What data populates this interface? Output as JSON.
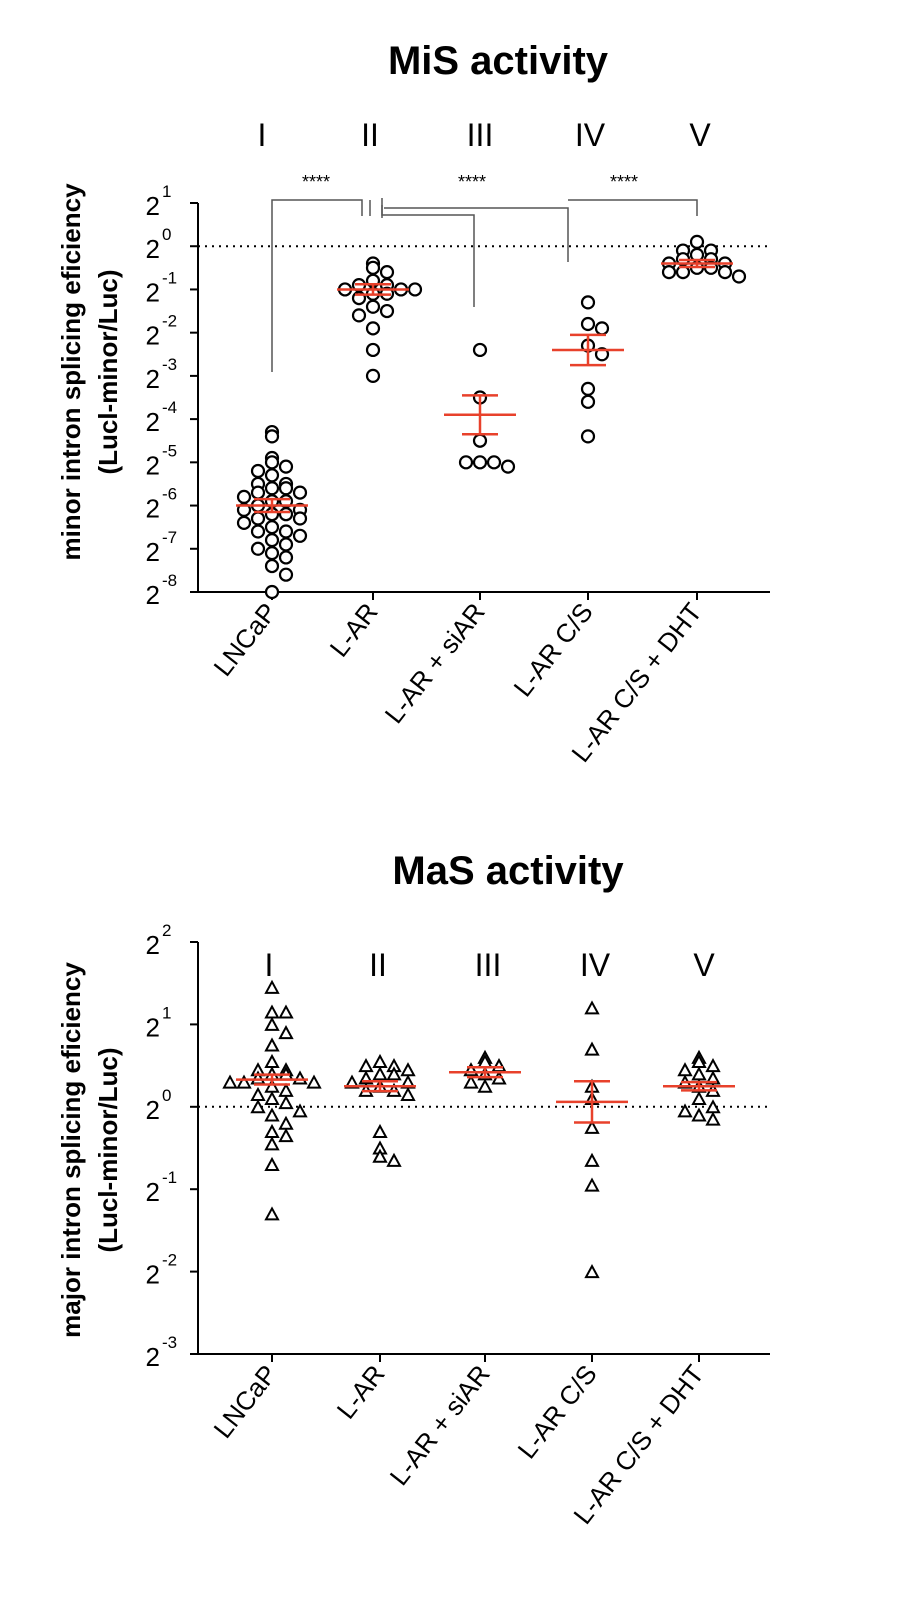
{
  "chart_data": [
    {
      "type": "scatter",
      "title": "MiS activity",
      "ylabel_line1": "minor intron splicing eficiency",
      "ylabel_line2": "(Lucl-minor/Luc)",
      "yscale": "log2",
      "ylim_exp": [
        -8,
        1
      ],
      "ytick_base": "2",
      "ytick_exponents": [
        "1",
        "0",
        "-1",
        "-2",
        "-3",
        "-4",
        "-5",
        "-6",
        "-7",
        "-8"
      ],
      "categories": [
        "LNCaP",
        "L-AR",
        "L-AR + siAR",
        "L-AR C/S",
        "L-AR C/S + DHT"
      ],
      "group_labels": [
        "I",
        "II",
        "III",
        "IV",
        "V"
      ],
      "marker": "circle",
      "reference_line_exp": 0,
      "significance": [
        {
          "from": 0,
          "to": 1,
          "label": "****"
        },
        {
          "from": 1,
          "to": 2,
          "label": ""
        },
        {
          "from": 1,
          "to": 3,
          "label": "****"
        },
        {
          "from": 3,
          "to": 4,
          "label": "****"
        }
      ],
      "series": [
        {
          "name": "LNCaP",
          "mean_exp": -6.0,
          "sem_exp": 0.15,
          "points_exp": [
            -4.3,
            -4.4,
            -4.9,
            -5.0,
            -5.1,
            -5.2,
            -5.3,
            -5.5,
            -5.5,
            -5.6,
            -5.6,
            -5.7,
            -5.7,
            -5.8,
            -5.9,
            -5.9,
            -6.0,
            -6.1,
            -6.1,
            -6.2,
            -6.2,
            -6.3,
            -6.3,
            -6.4,
            -6.5,
            -6.6,
            -6.6,
            -6.7,
            -6.8,
            -6.9,
            -7.0,
            -7.1,
            -7.2,
            -7.4,
            -7.6,
            -8.0
          ]
        },
        {
          "name": "L-AR",
          "mean_exp": -1.0,
          "sem_exp": 0.12,
          "points_exp": [
            -0.4,
            -0.5,
            -0.6,
            -0.8,
            -0.9,
            -0.9,
            -1.0,
            -1.0,
            -1.0,
            -1.1,
            -1.1,
            -1.2,
            -1.4,
            -1.5,
            -1.6,
            -1.9,
            -2.4,
            -3.0
          ]
        },
        {
          "name": "L-AR + siAR",
          "mean_exp": -3.9,
          "sem_exp": 0.45,
          "points_exp": [
            -2.4,
            -3.5,
            -4.5,
            -5.0,
            -5.0,
            -5.0,
            -5.1
          ]
        },
        {
          "name": "L-AR C/S",
          "mean_exp": -2.4,
          "sem_exp": 0.35,
          "points_exp": [
            -1.3,
            -1.8,
            -1.9,
            -2.3,
            -2.5,
            -3.3,
            -3.6,
            -4.4
          ]
        },
        {
          "name": "L-AR C/S + DHT",
          "mean_exp": -0.4,
          "sem_exp": 0.08,
          "points_exp": [
            0.1,
            -0.1,
            -0.1,
            -0.2,
            -0.3,
            -0.3,
            -0.4,
            -0.4,
            -0.5,
            -0.5,
            -0.6,
            -0.6,
            -0.6,
            -0.7
          ]
        }
      ]
    },
    {
      "type": "scatter",
      "title": "MaS activity",
      "ylabel_line1": "major intron splicing eficiency",
      "ylabel_line2": "(Lucl-minor/Luc)",
      "yscale": "log2",
      "ylim_exp": [
        -3,
        2
      ],
      "ytick_base": "2",
      "ytick_exponents": [
        "2",
        "1",
        "0",
        "-1",
        "-2",
        "-3"
      ],
      "categories": [
        "LNCaP",
        "L-AR",
        "L-AR + siAR",
        "L-AR C/S",
        "L-AR C/S + DHT"
      ],
      "group_labels": [
        "I",
        "II",
        "III",
        "IV",
        "V"
      ],
      "marker": "triangle",
      "reference_line_exp": 0,
      "series": [
        {
          "name": "LNCaP",
          "mean_exp": 0.33,
          "sem_exp": 0.06,
          "points_exp": [
            1.45,
            1.15,
            1.15,
            1.0,
            0.9,
            0.75,
            0.55,
            0.45,
            0.45,
            0.4,
            0.4,
            0.35,
            0.35,
            0.3,
            0.3,
            0.3,
            0.25,
            0.2,
            0.15,
            0.1,
            0.05,
            0.0,
            -0.05,
            -0.1,
            -0.2,
            -0.3,
            -0.35,
            -0.45,
            -0.7,
            -1.3
          ]
        },
        {
          "name": "L-AR",
          "mean_exp": 0.25,
          "sem_exp": 0.06,
          "points_exp": [
            0.55,
            0.5,
            0.5,
            0.45,
            0.4,
            0.4,
            0.35,
            0.3,
            0.3,
            0.25,
            0.2,
            0.2,
            0.15,
            -0.3,
            -0.5,
            -0.6,
            -0.65
          ]
        },
        {
          "name": "L-AR + siAR",
          "mean_exp": 0.42,
          "sem_exp": 0.06,
          "points_exp": [
            0.6,
            0.55,
            0.5,
            0.45,
            0.4,
            0.35,
            0.3,
            0.25
          ]
        },
        {
          "name": "L-AR C/S",
          "mean_exp": 0.06,
          "sem_exp": 0.25,
          "points_exp": [
            1.2,
            0.7,
            0.25,
            0.1,
            -0.25,
            -0.65,
            -0.95,
            -2.0
          ]
        },
        {
          "name": "L-AR C/S + DHT",
          "mean_exp": 0.25,
          "sem_exp": 0.05,
          "points_exp": [
            0.6,
            0.55,
            0.5,
            0.45,
            0.4,
            0.35,
            0.3,
            0.25,
            0.2,
            0.1,
            0.0,
            -0.05,
            -0.1,
            -0.15
          ]
        }
      ]
    }
  ],
  "colors": {
    "mean_sem": "#e8412b",
    "axis": "#000000",
    "marker_stroke": "#000000"
  }
}
